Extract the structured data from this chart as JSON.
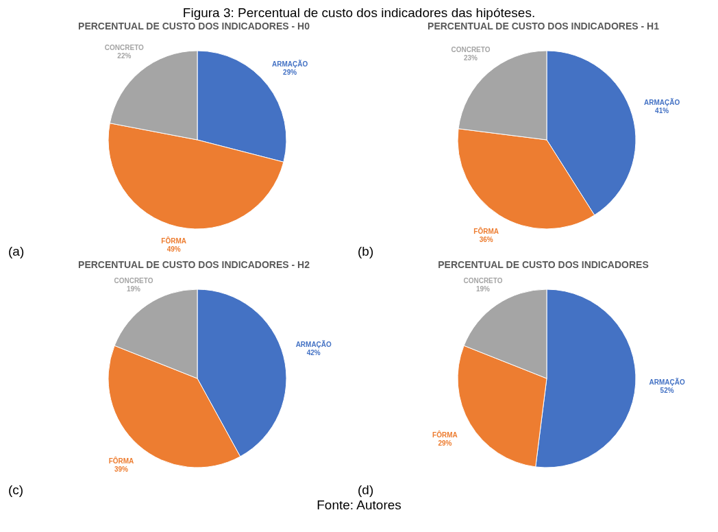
{
  "chart_data": [
    {
      "type": "pie",
      "title": "PERCENTUAL DE CUSTO DOS INDICADORES - H0",
      "categories": [
        "ARMAÇÃO",
        "FÔRMA",
        "CONCRETO"
      ],
      "values": [
        29,
        49,
        22
      ],
      "value_labels": [
        "29%",
        "49%",
        "22%"
      ],
      "colors": [
        "#4472c4",
        "#ed7d31",
        "#a5a5a5"
      ],
      "legend": false,
      "annotations": [
        "Figura 3: Percentual de custo dos indicadores das hipóteses.",
        "(a)"
      ]
    },
    {
      "type": "pie",
      "title": "PERCENTUAL DE CUSTO DOS INDICADORES - H1",
      "categories": [
        "ARMAÇÃO",
        "FÔRMA",
        "CONCRETO"
      ],
      "values": [
        41,
        36,
        23
      ],
      "value_labels": [
        "41%",
        "36%",
        "23%"
      ],
      "colors": [
        "#4472c4",
        "#ed7d31",
        "#a5a5a5"
      ],
      "legend": false,
      "annotations": [
        "(b)"
      ]
    },
    {
      "type": "pie",
      "title": "PERCENTUAL DE CUSTO DOS INDICADORES - H2",
      "categories": [
        "ARMAÇÃO",
        "FÔRMA",
        "CONCRETO"
      ],
      "values": [
        42,
        39,
        19
      ],
      "value_labels": [
        "42%",
        "39%",
        "19%"
      ],
      "colors": [
        "#4472c4",
        "#ed7d31",
        "#a5a5a5"
      ],
      "legend": false,
      "annotations": [
        "(c)"
      ]
    },
    {
      "type": "pie",
      "title": "PERCENTUAL DE CUSTO DOS INDICADORES",
      "categories": [
        "ARMAÇÃO",
        "FÔRMA",
        "CONCRETO"
      ],
      "values": [
        52,
        29,
        19
      ],
      "value_labels": [
        "52%",
        "29%",
        "19%"
      ],
      "colors": [
        "#4472c4",
        "#ed7d31",
        "#a5a5a5"
      ],
      "legend": false,
      "annotations": [
        "(d)",
        "Fonte: Autores"
      ]
    }
  ]
}
